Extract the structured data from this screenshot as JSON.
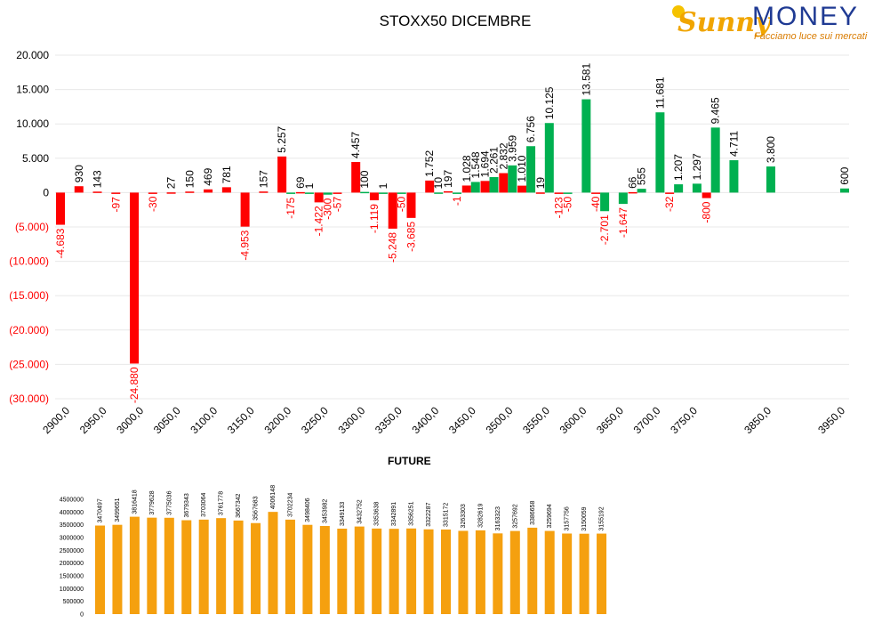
{
  "header": {
    "title": "STOXX50 DICEMBRE"
  },
  "logo": {
    "brand_a": "Sunny",
    "brand_b": "MONEY",
    "tagline": "Facciamo luce sui mercati"
  },
  "colors": {
    "positive": "#00b050",
    "negative": "#ff0000",
    "future": "#f5a00f",
    "neg_label": "#ff0000",
    "grid": "#e8e8e8"
  },
  "chart_data": [
    {
      "type": "bar",
      "title": "STOXX50 DICEMBRE",
      "ylim": [
        -30000,
        20000
      ],
      "yticks": [
        "20.000",
        "15.000",
        "10.000",
        "5.000",
        "0",
        "(5.000)",
        "(10.000)",
        "(15.000)",
        "(20.000)",
        "(25.000)",
        "(30.000)"
      ],
      "ytick_values": [
        20000,
        15000,
        10000,
        5000,
        0,
        -5000,
        -10000,
        -15000,
        -20000,
        -25000,
        -30000
      ],
      "categories": [
        "2900,0",
        "2950,0",
        "3000,0",
        "3050,0",
        "3100,0",
        "3150,0",
        "3200,0",
        "3250,0",
        "3300,0",
        "3350,0",
        "3400,0",
        "3450,0",
        "3500,0",
        "3550,0",
        "3600,0",
        "3650,0",
        "3700,0",
        "3750,0",
        "3850,0",
        "3950,0"
      ],
      "category_values": [
        2900,
        2950,
        3000,
        3050,
        3100,
        3150,
        3200,
        3250,
        3300,
        3350,
        3400,
        3450,
        3500,
        3550,
        3600,
        3650,
        3700,
        3750,
        3850,
        3950
      ],
      "grid": true,
      "series": [
        {
          "color": "red",
          "points": [
            {
              "x": 2900,
              "y": -4683,
              "label": "-4.683"
            },
            {
              "x": 2925,
              "y": 930,
              "label": "930"
            },
            {
              "x": 2950,
              "y": 143,
              "label": "143"
            },
            {
              "x": 2975,
              "y": -97,
              "label": "-97"
            },
            {
              "x": 3000,
              "y": -24880,
              "label": "-24.880"
            },
            {
              "x": 3025,
              "y": -30,
              "label": "-30"
            },
            {
              "x": 3050,
              "y": 27,
              "label": "27"
            },
            {
              "x": 3075,
              "y": 150,
              "label": "150"
            },
            {
              "x": 3100,
              "y": 469,
              "label": "469"
            },
            {
              "x": 3125,
              "y": 781,
              "label": "781"
            },
            {
              "x": 3150,
              "y": -4953,
              "label": "-4.953"
            },
            {
              "x": 3175,
              "y": 157,
              "label": "157"
            },
            {
              "x": 3200,
              "y": 5257,
              "label": "5.257"
            },
            {
              "x": 3225,
              "y": 69,
              "label": "69"
            },
            {
              "x": 3250,
              "y": -1422,
              "label": "-1.422"
            },
            {
              "x": 3275,
              "y": -57,
              "label": "-57"
            },
            {
              "x": 3300,
              "y": 4457,
              "label": "4.457"
            },
            {
              "x": 3325,
              "y": -1119,
              "label": "-1.119"
            },
            {
              "x": 3350,
              "y": -5248,
              "label": "-5.248"
            },
            {
              "x": 3375,
              "y": -3685,
              "label": "-3.685"
            },
            {
              "x": 3400,
              "y": 1752,
              "label": "1.752"
            },
            {
              "x": 3425,
              "y": 197,
              "label": "197"
            },
            {
              "x": 3450,
              "y": 1028,
              "label": "1.028"
            },
            {
              "x": 3475,
              "y": 1694,
              "label": "1.694"
            },
            {
              "x": 3500,
              "y": 2832,
              "label": "2.832"
            },
            {
              "x": 3525,
              "y": 1010,
              "label": "1.010"
            },
            {
              "x": 3550,
              "y": 19,
              "label": "19"
            },
            {
              "x": 3575,
              "y": -123,
              "label": "-123"
            },
            {
              "x": 3625,
              "y": -40,
              "label": "-40"
            },
            {
              "x": 3675,
              "y": 66,
              "label": "66"
            },
            {
              "x": 3725,
              "y": -32,
              "label": "-32"
            },
            {
              "x": 3775,
              "y": -800,
              "label": "-800"
            }
          ]
        },
        {
          "color": "green",
          "points": [
            {
              "x": 3200,
              "y": -175,
              "label": "-175"
            },
            {
              "x": 3225,
              "y": 1,
              "label": "1"
            },
            {
              "x": 3250,
              "y": -300,
              "label": "-300"
            },
            {
              "x": 3300,
              "y": 100,
              "label": "100"
            },
            {
              "x": 3325,
              "y": 1,
              "label": "1"
            },
            {
              "x": 3350,
              "y": -50,
              "label": "-50"
            },
            {
              "x": 3400,
              "y": 10,
              "label": "10"
            },
            {
              "x": 3425,
              "y": -1,
              "label": "-1"
            },
            {
              "x": 3450,
              "y": 1548,
              "label": "1.548"
            },
            {
              "x": 3475,
              "y": 2261,
              "label": "2.261"
            },
            {
              "x": 3500,
              "y": 3959,
              "label": "3.959"
            },
            {
              "x": 3525,
              "y": 6756,
              "label": "6.756"
            },
            {
              "x": 3550,
              "y": 10125,
              "label": "10.125"
            },
            {
              "x": 3575,
              "y": -50,
              "label": "-50"
            },
            {
              "x": 3600,
              "y": 13581,
              "label": "13.581"
            },
            {
              "x": 3625,
              "y": -2701,
              "label": "-2.701"
            },
            {
              "x": 3650,
              "y": -1647,
              "label": "-1.647"
            },
            {
              "x": 3675,
              "y": 555,
              "label": "555"
            },
            {
              "x": 3700,
              "y": 11681,
              "label": "11.681"
            },
            {
              "x": 3725,
              "y": 1207,
              "label": "1.207"
            },
            {
              "x": 3750,
              "y": 1297,
              "label": "1.297"
            },
            {
              "x": 3775,
              "y": 9465,
              "label": "9.465"
            },
            {
              "x": 3800,
              "y": 4711,
              "label": "4.711"
            },
            {
              "x": 3850,
              "y": 3800,
              "label": "3.800"
            },
            {
              "x": 3950,
              "y": 600,
              "label": "600"
            }
          ]
        }
      ]
    },
    {
      "type": "bar",
      "title": "FUTURE",
      "ylim": [
        0,
        4500000
      ],
      "yticks": [
        "4500000",
        "4000000",
        "3500000",
        "3000000",
        "2500000",
        "2000000",
        "1500000",
        "1000000",
        "500000",
        "0"
      ],
      "ytick_values": [
        4500000,
        4000000,
        3500000,
        3000000,
        2500000,
        2000000,
        1500000,
        1000000,
        500000,
        0
      ],
      "values": [
        3470497,
        3499651,
        3816418,
        3779628,
        3775036,
        3679343,
        3703064,
        3761778,
        3667342,
        3567683,
        4006148,
        3702234,
        3498406,
        3453982,
        3349133,
        3432752,
        3353638,
        3342891,
        3356251,
        3322287,
        3315172,
        3263303,
        3282619,
        3163323,
        3257692,
        3386658,
        3259694,
        3157756,
        3150059,
        3155192
      ],
      "labels": [
        "3470497",
        "3499651",
        "3816418",
        "3779628",
        "3775036",
        "3679343",
        "3703064",
        "3761778",
        "3667342",
        "3567683",
        "4006148",
        "3702234",
        "3498406",
        "3453982",
        "3349133",
        "3432752",
        "3353638",
        "3342891",
        "3356251",
        "3322287",
        "3315172",
        "3263303",
        "3282619",
        "3163323",
        "3257692",
        "3386658",
        "3259694",
        "3157756",
        "3150059",
        "3155192"
      ]
    }
  ]
}
